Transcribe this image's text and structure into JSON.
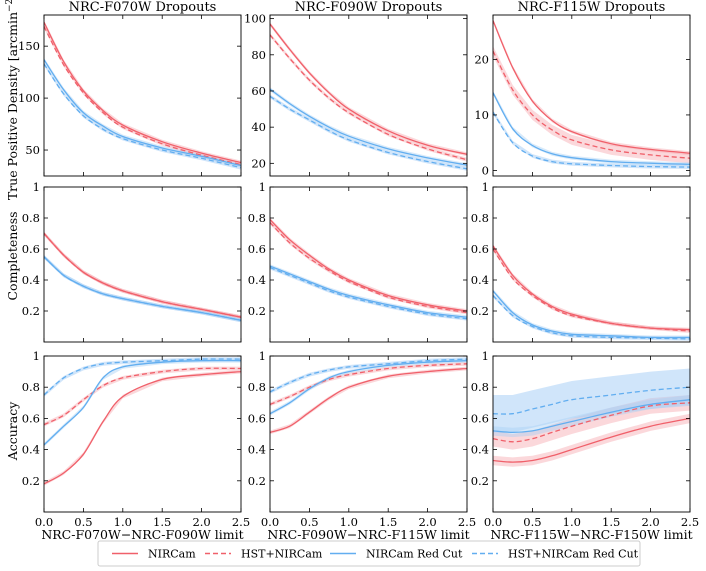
{
  "figure": {
    "ylabels": [
      "True Positive Density [arcmin",
      "Completeness",
      "Accuracy"
    ],
    "density_unit_sup": "−2",
    "density_unit_close": "]"
  },
  "colors": {
    "nircam": "#f0606a",
    "blue": "#62aef0",
    "red_band": "#f7a9b0",
    "blue_band": "#a9d0f5"
  },
  "legend": {
    "entries": [
      {
        "label": "NIRCam",
        "style": "solid",
        "color": "red"
      },
      {
        "label": "HST+NIRCam",
        "style": "dashed",
        "color": "red"
      },
      {
        "label": "NIRCam Red Cut",
        "style": "solid",
        "color": "blue"
      },
      {
        "label": "HST+NIRCam Red Cut",
        "style": "dashed",
        "color": "blue"
      }
    ]
  },
  "chart_data": [
    {
      "type": "line",
      "row": 0,
      "col": 0,
      "title": "NRC-F070W Dropouts",
      "xlabel": "",
      "ylabel": "True Positive Density [arcmin^-2]",
      "xlim": [
        0,
        2.5
      ],
      "ylim": [
        25,
        180
      ],
      "yticks": [
        50,
        100,
        150
      ],
      "xticks": [
        0,
        0.5,
        1.0,
        1.5,
        2.0,
        2.5
      ],
      "x": [
        0,
        0.25,
        0.5,
        0.75,
        1.0,
        1.5,
        2.0,
        2.5
      ],
      "series": [
        {
          "name": "NIRCam",
          "values": [
            173,
            135,
            107,
            88,
            74,
            58,
            47,
            38
          ]
        },
        {
          "name": "HST+NIRCam",
          "values": [
            169,
            132,
            105,
            86,
            72,
            56,
            45,
            36
          ]
        },
        {
          "name": "NIRCam Red Cut",
          "values": [
            137,
            108,
            86,
            73,
            63,
            52,
            44,
            35
          ]
        },
        {
          "name": "HST+NIRCam Red Cut",
          "values": [
            133,
            104,
            83,
            70,
            61,
            50,
            42,
            33
          ]
        }
      ]
    },
    {
      "type": "line",
      "row": 0,
      "col": 1,
      "title": "NRC-F090W Dropouts",
      "xlabel": "",
      "ylabel": "",
      "xlim": [
        0,
        2.5
      ],
      "ylim": [
        13,
        102
      ],
      "yticks": [
        20,
        40,
        60,
        80,
        100
      ],
      "xticks": [
        0,
        0.5,
        1.0,
        1.5,
        2.0,
        2.5
      ],
      "x": [
        0,
        0.25,
        0.5,
        0.75,
        1.0,
        1.5,
        2.0,
        2.5
      ],
      "series": [
        {
          "name": "NIRCam",
          "values": [
            97,
            83,
            70,
            59,
            50,
            38,
            30,
            25
          ]
        },
        {
          "name": "HST+NIRCam",
          "values": [
            91,
            78,
            66,
            56,
            48,
            36,
            28,
            22
          ]
        },
        {
          "name": "NIRCam Red Cut",
          "values": [
            61,
            53,
            46,
            40,
            35,
            28,
            23,
            19
          ]
        },
        {
          "name": "HST+NIRCam Red Cut",
          "values": [
            57,
            50,
            44,
            38,
            33,
            26,
            21,
            17
          ]
        }
      ]
    },
    {
      "type": "line",
      "row": 0,
      "col": 2,
      "title": "NRC-F115W Dropouts",
      "xlabel": "",
      "ylabel": "",
      "xlim": [
        0,
        2.5
      ],
      "ylim": [
        -1,
        28
      ],
      "yticks": [
        0,
        10,
        20
      ],
      "xticks": [
        0,
        0.5,
        1.0,
        1.5,
        2.0,
        2.5
      ],
      "x": [
        0,
        0.25,
        0.5,
        0.75,
        1.0,
        1.5,
        2.0,
        2.5
      ],
      "series": [
        {
          "name": "NIRCam",
          "values": [
            27,
            18.5,
            12.5,
            9,
            7,
            4.8,
            3.8,
            3.1
          ]
        },
        {
          "name": "HST+NIRCam",
          "values": [
            21.5,
            14.5,
            10,
            7.3,
            5.5,
            3.7,
            2.8,
            2.2
          ]
        },
        {
          "name": "NIRCam Red Cut",
          "values": [
            14,
            7.5,
            4.5,
            3,
            2.3,
            1.6,
            1.3,
            1.1
          ]
        },
        {
          "name": "HST+NIRCam Red Cut",
          "values": [
            10.5,
            5,
            2.6,
            1.6,
            1.2,
            0.9,
            0.7,
            0.6
          ]
        }
      ]
    },
    {
      "type": "line",
      "row": 1,
      "col": 0,
      "title": "",
      "xlabel": "",
      "ylabel": "Completeness",
      "xlim": [
        0,
        2.5
      ],
      "ylim": [
        0,
        1.0
      ],
      "yticks": [
        0.2,
        0.4,
        0.6,
        0.8,
        1.0
      ],
      "xticks": [
        0,
        0.5,
        1.0,
        1.5,
        2.0,
        2.5
      ],
      "x": [
        0,
        0.25,
        0.5,
        0.75,
        1.0,
        1.5,
        2.0,
        2.5
      ],
      "series": [
        {
          "name": "NIRCam",
          "values": [
            0.7,
            0.56,
            0.45,
            0.38,
            0.33,
            0.26,
            0.21,
            0.16
          ]
        },
        {
          "name": "HST+NIRCam",
          "values": [
            0.7,
            0.56,
            0.45,
            0.38,
            0.33,
            0.26,
            0.21,
            0.16
          ]
        },
        {
          "name": "NIRCam Red Cut",
          "values": [
            0.55,
            0.43,
            0.36,
            0.31,
            0.28,
            0.23,
            0.19,
            0.14
          ]
        },
        {
          "name": "HST+NIRCam Red Cut",
          "values": [
            0.55,
            0.43,
            0.36,
            0.31,
            0.28,
            0.23,
            0.19,
            0.14
          ]
        }
      ]
    },
    {
      "type": "line",
      "row": 1,
      "col": 1,
      "title": "",
      "xlabel": "",
      "ylabel": "",
      "xlim": [
        0,
        2.5
      ],
      "ylim": [
        0,
        1.0
      ],
      "yticks": [
        0.2,
        0.4,
        0.6,
        0.8,
        1.0
      ],
      "xticks": [
        0,
        0.5,
        1.0,
        1.5,
        2.0,
        2.5
      ],
      "x": [
        0,
        0.25,
        0.5,
        0.75,
        1.0,
        1.5,
        2.0,
        2.5
      ],
      "series": [
        {
          "name": "NIRCam",
          "values": [
            0.79,
            0.66,
            0.56,
            0.47,
            0.4,
            0.3,
            0.24,
            0.2
          ]
        },
        {
          "name": "HST+NIRCam",
          "values": [
            0.77,
            0.64,
            0.54,
            0.46,
            0.39,
            0.29,
            0.23,
            0.19
          ]
        },
        {
          "name": "NIRCam Red Cut",
          "values": [
            0.49,
            0.44,
            0.39,
            0.34,
            0.3,
            0.24,
            0.19,
            0.16
          ]
        },
        {
          "name": "HST+NIRCam Red Cut",
          "values": [
            0.48,
            0.43,
            0.38,
            0.33,
            0.29,
            0.23,
            0.18,
            0.15
          ]
        }
      ]
    },
    {
      "type": "line",
      "row": 1,
      "col": 2,
      "title": "",
      "xlabel": "",
      "ylabel": "",
      "xlim": [
        0,
        2.5
      ],
      "ylim": [
        0,
        1.0
      ],
      "yticks": [
        0.2,
        0.4,
        0.6,
        0.8,
        1.0
      ],
      "xticks": [
        0,
        0.5,
        1.0,
        1.5,
        2.0,
        2.5
      ],
      "x": [
        0,
        0.25,
        0.5,
        0.75,
        1.0,
        1.5,
        2.0,
        2.5
      ],
      "series": [
        {
          "name": "NIRCam",
          "values": [
            0.62,
            0.43,
            0.31,
            0.23,
            0.18,
            0.12,
            0.09,
            0.08
          ]
        },
        {
          "name": "HST+NIRCam",
          "values": [
            0.6,
            0.41,
            0.3,
            0.22,
            0.17,
            0.12,
            0.09,
            0.07
          ]
        },
        {
          "name": "NIRCam Red Cut",
          "values": [
            0.33,
            0.19,
            0.11,
            0.07,
            0.05,
            0.04,
            0.03,
            0.03
          ]
        },
        {
          "name": "HST+NIRCam Red Cut",
          "values": [
            0.3,
            0.17,
            0.1,
            0.06,
            0.04,
            0.03,
            0.025,
            0.02
          ]
        }
      ]
    },
    {
      "type": "line",
      "row": 2,
      "col": 0,
      "title": "",
      "xlabel": "NRC-F070W−NRC-F090W limit",
      "ylabel": "Accuracy",
      "xlim": [
        0,
        2.5
      ],
      "ylim": [
        0,
        1.0
      ],
      "yticks": [
        0.2,
        0.4,
        0.6,
        0.8,
        1.0
      ],
      "xticks": [
        0,
        0.5,
        1.0,
        1.5,
        2.0,
        2.5
      ],
      "x": [
        0,
        0.25,
        0.5,
        0.75,
        1.0,
        1.5,
        2.0,
        2.5
      ],
      "xtick_labels": [
        "0.0",
        "0.5",
        "1.0",
        "1.5",
        "2.0",
        "2.5"
      ],
      "series": [
        {
          "name": "NIRCam",
          "values": [
            0.18,
            0.25,
            0.37,
            0.58,
            0.74,
            0.85,
            0.88,
            0.9
          ]
        },
        {
          "name": "HST+NIRCam",
          "values": [
            0.56,
            0.62,
            0.72,
            0.81,
            0.86,
            0.9,
            0.92,
            0.92
          ]
        },
        {
          "name": "NIRCam Red Cut",
          "values": [
            0.43,
            0.55,
            0.67,
            0.86,
            0.93,
            0.96,
            0.97,
            0.97
          ]
        },
        {
          "name": "HST+NIRCam Red Cut",
          "values": [
            0.75,
            0.86,
            0.92,
            0.95,
            0.96,
            0.97,
            0.98,
            0.98
          ]
        }
      ]
    },
    {
      "type": "line",
      "row": 2,
      "col": 1,
      "title": "",
      "xlabel": "NRC-F090W−NRC-F115W limit",
      "ylabel": "",
      "xlim": [
        0,
        2.5
      ],
      "ylim": [
        0,
        1.0
      ],
      "yticks": [
        0.2,
        0.4,
        0.6,
        0.8,
        1.0
      ],
      "xticks": [
        0,
        0.5,
        1.0,
        1.5,
        2.0,
        2.5
      ],
      "x": [
        0,
        0.25,
        0.5,
        0.75,
        1.0,
        1.5,
        2.0,
        2.5
      ],
      "xtick_labels": [
        "0.0",
        "0.5",
        "1.0",
        "1.5",
        "2.0",
        "2.5"
      ],
      "series": [
        {
          "name": "NIRCam",
          "values": [
            0.51,
            0.55,
            0.64,
            0.73,
            0.8,
            0.87,
            0.9,
            0.92
          ]
        },
        {
          "name": "HST+NIRCam",
          "values": [
            0.69,
            0.74,
            0.8,
            0.85,
            0.88,
            0.92,
            0.94,
            0.95
          ]
        },
        {
          "name": "NIRCam Red Cut",
          "values": [
            0.63,
            0.7,
            0.79,
            0.86,
            0.9,
            0.94,
            0.96,
            0.97
          ]
        },
        {
          "name": "HST+NIRCam Red Cut",
          "values": [
            0.77,
            0.83,
            0.88,
            0.91,
            0.93,
            0.95,
            0.97,
            0.98
          ]
        }
      ]
    },
    {
      "type": "line",
      "row": 2,
      "col": 2,
      "title": "",
      "xlabel": "NRC-F115W−NRC-F150W limit",
      "ylabel": "",
      "xlim": [
        0,
        2.5
      ],
      "ylim": [
        0,
        1.0
      ],
      "yticks": [
        0.2,
        0.4,
        0.6,
        0.8,
        1.0
      ],
      "xticks": [
        0,
        0.5,
        1.0,
        1.5,
        2.0,
        2.5
      ],
      "x": [
        0,
        0.25,
        0.5,
        0.75,
        1.0,
        1.5,
        2.0,
        2.5
      ],
      "xtick_labels": [
        "0.0",
        "0.5",
        "1.0",
        "1.5",
        "2.0",
        "2.5"
      ],
      "series": [
        {
          "name": "NIRCam",
          "values": [
            0.33,
            0.32,
            0.33,
            0.36,
            0.4,
            0.48,
            0.55,
            0.6
          ]
        },
        {
          "name": "HST+NIRCam",
          "values": [
            0.47,
            0.45,
            0.47,
            0.51,
            0.55,
            0.62,
            0.68,
            0.7
          ]
        },
        {
          "name": "NIRCam Red Cut",
          "values": [
            0.52,
            0.51,
            0.52,
            0.55,
            0.58,
            0.64,
            0.69,
            0.72
          ]
        },
        {
          "name": "HST+NIRCam Red Cut",
          "values": [
            0.63,
            0.63,
            0.66,
            0.69,
            0.72,
            0.75,
            0.78,
            0.8
          ]
        }
      ]
    }
  ]
}
